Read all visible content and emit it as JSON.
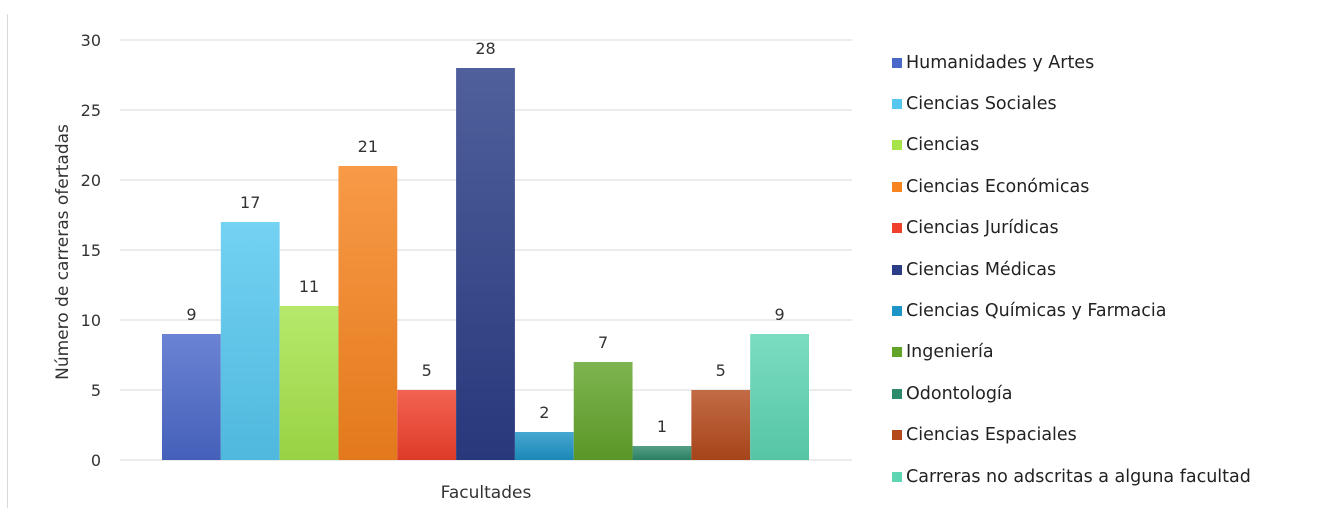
{
  "chart_data": {
    "type": "bar",
    "title": "",
    "xlabel": "Facultades",
    "ylabel": "Número de carreras ofertadas",
    "ylim": [
      0,
      30
    ],
    "yticks": [
      0,
      5,
      10,
      15,
      20,
      25,
      30
    ],
    "grid": true,
    "legend_position": "right",
    "categories": [
      "Facultades"
    ],
    "series": [
      {
        "name": "Humanidades y Artes",
        "values": [
          9
        ],
        "color": "#4a68c9"
      },
      {
        "name": "Ciencias Sociales",
        "values": [
          17
        ],
        "color": "#56c8f0"
      },
      {
        "name": "Ciencias",
        "values": [
          11
        ],
        "color": "#a6e44a"
      },
      {
        "name": "Ciencias Económicas",
        "values": [
          21
        ],
        "color": "#f7841e"
      },
      {
        "name": "Ciencias Jurídicas",
        "values": [
          5
        ],
        "color": "#f0402c"
      },
      {
        "name": "Ciencias Médicas",
        "values": [
          28
        ],
        "color": "#2a3d86"
      },
      {
        "name": "Ciencias Químicas y Farmacia",
        "values": [
          2
        ],
        "color": "#1d94c6"
      },
      {
        "name": "Ingeniería",
        "values": [
          7
        ],
        "color": "#62a42a"
      },
      {
        "name": "Odontología",
        "values": [
          1
        ],
        "color": "#2e8a6c"
      },
      {
        "name": "Ciencias Espaciales",
        "values": [
          5
        ],
        "color": "#b44a1c"
      },
      {
        "name": "Carreras no adscritas a alguna facultad",
        "values": [
          9
        ],
        "color": "#5ed6b4"
      }
    ]
  }
}
